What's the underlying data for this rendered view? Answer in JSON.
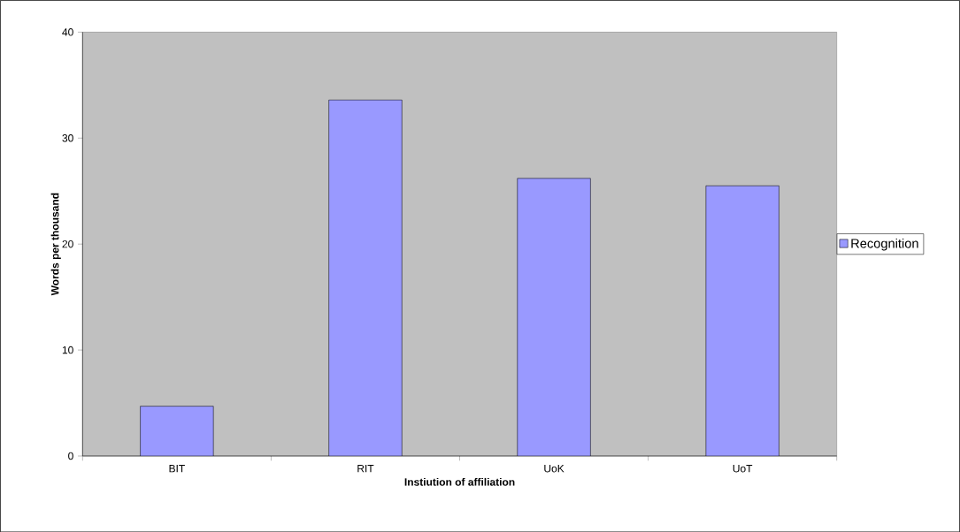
{
  "chart_data": {
    "type": "bar",
    "xlabel": "Instiution of affiliation",
    "ylabel": "Words per thousand",
    "categories": [
      "BIT",
      "RIT",
      "UoK",
      "UoT"
    ],
    "series": [
      {
        "name": "Recognition",
        "color": "#9999ff",
        "values": [
          4.7,
          33.6,
          26.2,
          25.5
        ]
      }
    ],
    "ylim": [
      0,
      40
    ],
    "yticks": [
      0,
      10,
      20,
      30,
      40
    ],
    "grid": false,
    "legend": "right"
  }
}
